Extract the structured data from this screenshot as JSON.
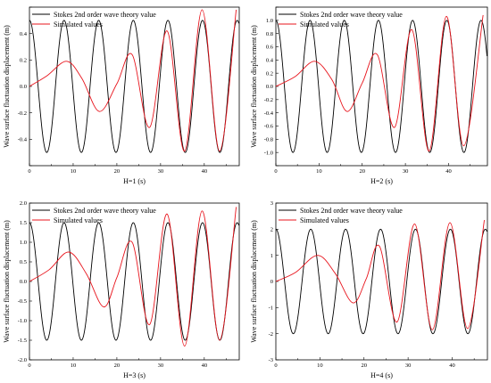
{
  "chart_data": [
    {
      "type": "line",
      "xlabel": "H=1 (s)",
      "ylabel": "Wave surface fluctuation displacement (m)",
      "xlim": [
        0,
        48
      ],
      "ylim": [
        -0.6,
        0.6
      ],
      "xticks": [
        0,
        10,
        20,
        30,
        40
      ],
      "yticks": [
        -0.6,
        -0.4,
        -0.2,
        0.0,
        0.2,
        0.4,
        0.6
      ],
      "ytick_labels": [
        "",
        "-0.4",
        "-0.2",
        "0.0",
        "0.2",
        "0.4",
        ""
      ],
      "legend": "top-left",
      "series": [
        {
          "name": "Stokes 2nd order wave theory value",
          "color": "#000000",
          "amplitude": 0.5,
          "period": 7.92,
          "phase_deg": 90
        },
        {
          "name": "Simulated values",
          "color": "#e8141c",
          "x": [
            0,
            4,
            8.5,
            12,
            16,
            20,
            23.5,
            27.5,
            31.5,
            35.5,
            39.5,
            43.5,
            47.3
          ],
          "y": [
            0,
            0.08,
            0.19,
            0.06,
            -0.19,
            0.02,
            0.24,
            -0.31,
            0.42,
            -0.49,
            0.58,
            -0.49,
            0.58
          ]
        }
      ]
    },
    {
      "type": "line",
      "xlabel": "H=2 (s)",
      "ylabel": "Wave surface fluctuation displacement (m)",
      "xlim": [
        0,
        49
      ],
      "ylim": [
        -1.2,
        1.2
      ],
      "xticks": [
        0,
        10,
        20,
        30,
        40
      ],
      "yticks": [
        -1.2,
        -1.0,
        -0.8,
        -0.6,
        -0.4,
        -0.2,
        0.0,
        0.2,
        0.4,
        0.6,
        0.8,
        1.0,
        1.2
      ],
      "ytick_labels": [
        "",
        "-1.0",
        "-0.8",
        "-0.6",
        "-0.4",
        "-0.2",
        "0.0",
        "0.2",
        "0.4",
        "0.6",
        "0.8",
        "1.0",
        ""
      ],
      "legend": "top-left",
      "series": [
        {
          "name": "Stokes 2nd order wave theory value",
          "color": "#000000",
          "amplitude": 1.0,
          "period": 7.92,
          "phase_deg": 90
        },
        {
          "name": "Simulated values",
          "color": "#e8141c",
          "x": [
            0,
            4.5,
            9,
            13,
            16.5,
            20,
            23.5,
            27.5,
            31.5,
            35.5,
            39.5,
            43.5,
            48
          ],
          "y": [
            0,
            0.15,
            0.38,
            0.1,
            -0.38,
            0.05,
            0.48,
            -0.62,
            0.86,
            -0.98,
            1.06,
            -0.9,
            1.08
          ]
        }
      ]
    },
    {
      "type": "line",
      "xlabel": "H=3 (s)",
      "ylabel": "Wave surface fluctuation displacement (m)",
      "xlim": [
        0,
        48
      ],
      "ylim": [
        -2.0,
        2.0
      ],
      "xticks": [
        0,
        10,
        20,
        30,
        40
      ],
      "yticks": [
        -2.0,
        -1.5,
        -1.0,
        -0.5,
        0.0,
        0.5,
        1.0,
        1.5,
        2.0
      ],
      "ytick_labels": [
        "-2.0",
        "-1.5",
        "-1.0",
        "-0.5",
        "0.0",
        "0.5",
        "1.0",
        "1.5",
        "2.0"
      ],
      "legend": "top-left",
      "series": [
        {
          "name": "Stokes 2nd order wave theory value",
          "color": "#000000",
          "amplitude": 1.5,
          "period": 7.92,
          "phase_deg": 90
        },
        {
          "name": "Simulated values",
          "color": "#e8141c",
          "x": [
            0,
            4.5,
            9,
            13,
            17,
            20,
            23.5,
            27.5,
            31.5,
            35.5,
            39.5,
            43.5,
            47.3
          ],
          "y": [
            0,
            0.3,
            0.75,
            0.2,
            -0.65,
            0.1,
            1.0,
            -1.1,
            1.72,
            -1.65,
            1.8,
            -1.5,
            1.9
          ]
        }
      ]
    },
    {
      "type": "line",
      "xlabel": "H=4 (s)",
      "ylabel": "Wave surface fluctuation displacement (m)",
      "xlim": [
        0,
        48
      ],
      "ylim": [
        -3,
        3
      ],
      "xticks": [
        0,
        10,
        20,
        30,
        40
      ],
      "yticks": [
        -3,
        -2,
        -1,
        0,
        1,
        2,
        3
      ],
      "ytick_labels": [
        "-3",
        "-2",
        "-1",
        "0",
        "1",
        "2",
        "3"
      ],
      "legend": "top-left",
      "series": [
        {
          "name": "Stokes 2nd order wave theory value",
          "color": "#000000",
          "amplitude": 2.0,
          "period": 7.92,
          "phase_deg": 90
        },
        {
          "name": "Simulated values",
          "color": "#e8141c",
          "x": [
            0,
            4.5,
            9.5,
            13.5,
            17.5,
            20.5,
            23.5,
            27.5,
            31.5,
            35.5,
            39.5,
            43.5,
            47.3
          ],
          "y": [
            0,
            0.35,
            1.0,
            0.3,
            -0.82,
            0.1,
            1.35,
            -1.55,
            2.2,
            -1.85,
            2.25,
            -1.8,
            2.35
          ]
        }
      ]
    }
  ]
}
